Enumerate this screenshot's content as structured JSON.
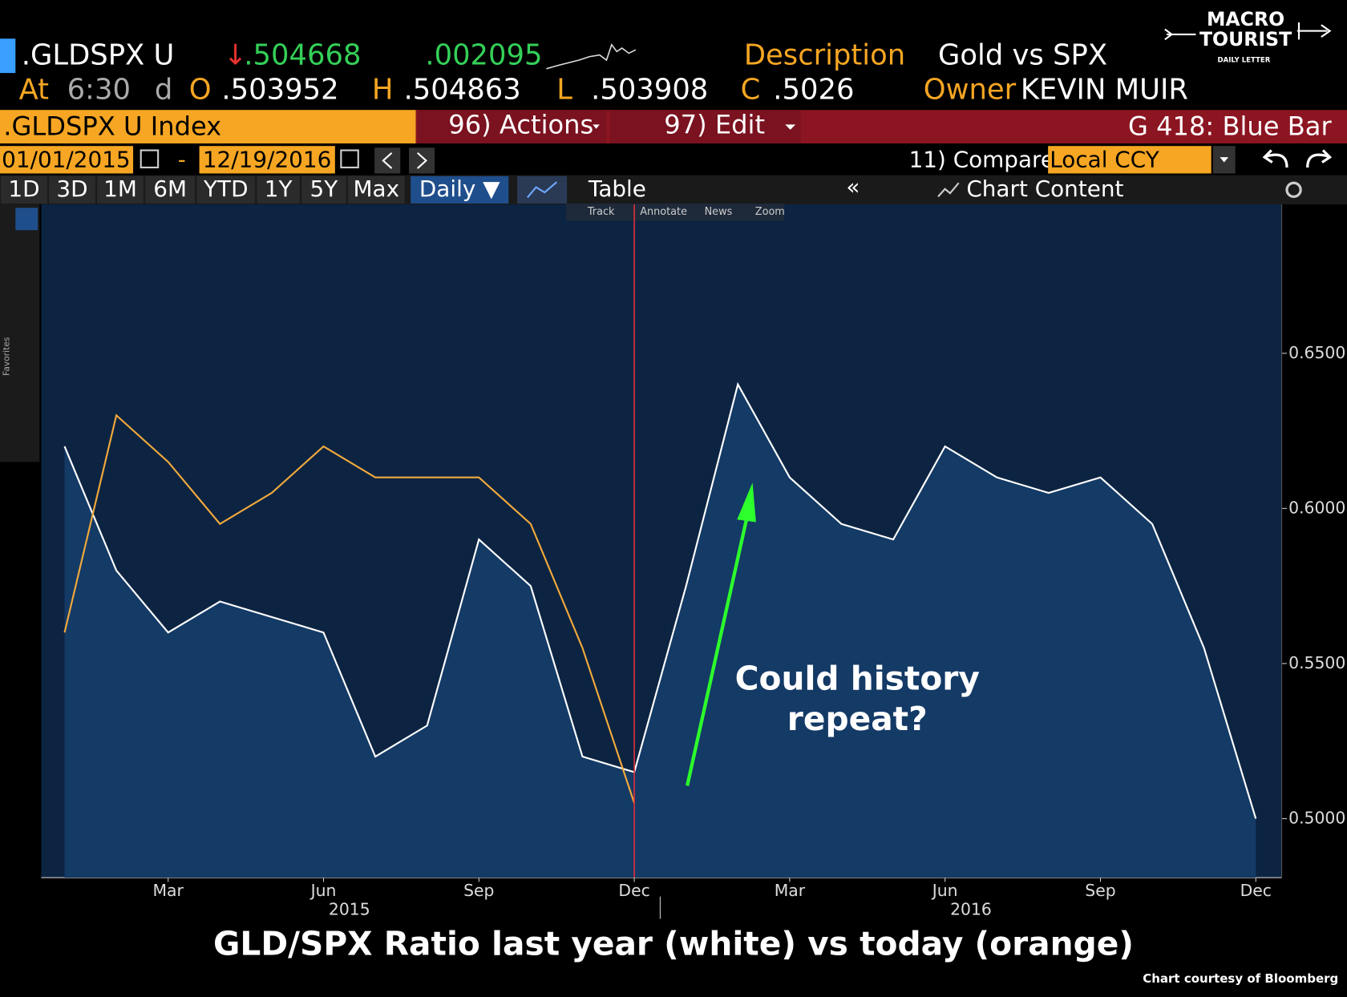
{
  "header": {
    "ticker": ".GLDSPX U",
    "arrow": "↓",
    "last": ".504668",
    "change": ".002095",
    "description_label": "Description",
    "description": "Gold vs SPX",
    "at_label": "At",
    "time": "6:30",
    "d": "d",
    "open_label": "O",
    "open": ".503952",
    "high_label": "H",
    "high": ".504863",
    "low_label": "L",
    "low": ".503908",
    "close_label": "C",
    "close": ".5026",
    "owner_label": "Owner",
    "owner": "KEVIN MUIR"
  },
  "logo": {
    "line1": "MACRO",
    "line2": "TOURIST",
    "line3": "DAILY LETTER"
  },
  "toolbar": {
    "index": ".GLDSPX U Index",
    "actions": "96) Actions",
    "edit": "97) Edit",
    "chart_name": "G 418: Blue Bar",
    "start_date": "01/01/2015",
    "dash": "-",
    "end_date": "12/19/2016",
    "compare": "11) Compare",
    "currency": "Local CCY",
    "periods": [
      "1D",
      "3D",
      "1M",
      "6M",
      "YTD",
      "1Y",
      "5Y",
      "Max"
    ],
    "frequency": "Daily ▼",
    "table": "Table",
    "back": "«",
    "chart_content": "Chart Content",
    "chart_tools": [
      "Track",
      "Annotate",
      "News",
      "Zoom"
    ],
    "favorites": "Favorites"
  },
  "chart_data": {
    "type": "line",
    "x": [
      "2015-01",
      "2015-02",
      "2015-03",
      "2015-04",
      "2015-05",
      "2015-06",
      "2015-07",
      "2015-08",
      "2015-09",
      "2015-10",
      "2015-11",
      "2015-12",
      "2016-01",
      "2016-02",
      "2016-03",
      "2016-04",
      "2016-05",
      "2016-06",
      "2016-07",
      "2016-08",
      "2016-09",
      "2016-10",
      "2016-11",
      "2016-12"
    ],
    "series": [
      {
        "color": "#ffffff",
        "area_color": "#143a66",
        "values": [
          0.62,
          0.58,
          0.56,
          0.57,
          0.565,
          0.56,
          0.52,
          0.53,
          0.59,
          0.575,
          0.52,
          0.515,
          0.575,
          0.64,
          0.61,
          0.595,
          0.59,
          0.62,
          0.61,
          0.605,
          0.61,
          0.595,
          0.555,
          0.5
        ]
      },
      {
        "color": "#f2a93b",
        "values": [
          0.56,
          0.63,
          0.615,
          0.595,
          0.605,
          0.62,
          0.61,
          0.61,
          0.61,
          0.595,
          0.555,
          0.505,
          null,
          null,
          null,
          null,
          null,
          null,
          null,
          null,
          null,
          null,
          null,
          null
        ]
      }
    ],
    "ylim": [
      0.481,
      0.698
    ],
    "yticks": [
      {
        "value": 0.5,
        "label": "0.5000"
      },
      {
        "value": 0.55,
        "label": "0.5500"
      },
      {
        "value": 0.6,
        "label": "0.6000"
      },
      {
        "value": 0.65,
        "label": "0.6500"
      }
    ],
    "xticks": [
      {
        "value": "2015-03",
        "label": "Mar"
      },
      {
        "value": "2015-06",
        "label": "Jun"
      },
      {
        "value": "2015-09",
        "label": "Sep"
      },
      {
        "value": "2015-12",
        "label": "Dec"
      },
      {
        "value": "2016-03",
        "label": "Mar"
      },
      {
        "value": "2016-06",
        "label": "Jun"
      },
      {
        "value": "2016-09",
        "label": "Sep"
      },
      {
        "value": "2016-12",
        "label": "Dec"
      }
    ],
    "years": [
      "2015",
      "2016"
    ],
    "marker_x": "2015-12",
    "annotation": [
      "Could history",
      "repeat?"
    ],
    "caption": "GLD/SPX Ratio last year (white) vs today (orange)",
    "credit": "Chart courtesy of Bloomberg"
  }
}
